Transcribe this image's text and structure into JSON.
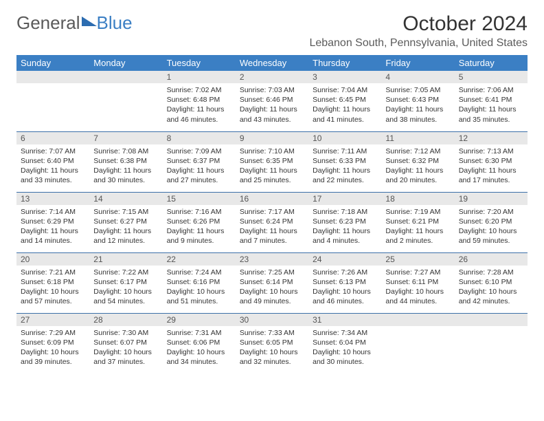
{
  "logo": {
    "text_general": "General",
    "text_blue": "Blue"
  },
  "title": "October 2024",
  "location": "Lebanon South, Pennsylvania, United States",
  "header_bg": "#3b7fc4",
  "daynum_bg": "#e8e8e8",
  "border_color": "#3b6fa8",
  "day_headers": [
    "Sunday",
    "Monday",
    "Tuesday",
    "Wednesday",
    "Thursday",
    "Friday",
    "Saturday"
  ],
  "weeks": [
    [
      {
        "n": "",
        "sr": "",
        "ss": "",
        "dl": ""
      },
      {
        "n": "",
        "sr": "",
        "ss": "",
        "dl": ""
      },
      {
        "n": "1",
        "sr": "Sunrise: 7:02 AM",
        "ss": "Sunset: 6:48 PM",
        "dl": "Daylight: 11 hours and 46 minutes."
      },
      {
        "n": "2",
        "sr": "Sunrise: 7:03 AM",
        "ss": "Sunset: 6:46 PM",
        "dl": "Daylight: 11 hours and 43 minutes."
      },
      {
        "n": "3",
        "sr": "Sunrise: 7:04 AM",
        "ss": "Sunset: 6:45 PM",
        "dl": "Daylight: 11 hours and 41 minutes."
      },
      {
        "n": "4",
        "sr": "Sunrise: 7:05 AM",
        "ss": "Sunset: 6:43 PM",
        "dl": "Daylight: 11 hours and 38 minutes."
      },
      {
        "n": "5",
        "sr": "Sunrise: 7:06 AM",
        "ss": "Sunset: 6:41 PM",
        "dl": "Daylight: 11 hours and 35 minutes."
      }
    ],
    [
      {
        "n": "6",
        "sr": "Sunrise: 7:07 AM",
        "ss": "Sunset: 6:40 PM",
        "dl": "Daylight: 11 hours and 33 minutes."
      },
      {
        "n": "7",
        "sr": "Sunrise: 7:08 AM",
        "ss": "Sunset: 6:38 PM",
        "dl": "Daylight: 11 hours and 30 minutes."
      },
      {
        "n": "8",
        "sr": "Sunrise: 7:09 AM",
        "ss": "Sunset: 6:37 PM",
        "dl": "Daylight: 11 hours and 27 minutes."
      },
      {
        "n": "9",
        "sr": "Sunrise: 7:10 AM",
        "ss": "Sunset: 6:35 PM",
        "dl": "Daylight: 11 hours and 25 minutes."
      },
      {
        "n": "10",
        "sr": "Sunrise: 7:11 AM",
        "ss": "Sunset: 6:33 PM",
        "dl": "Daylight: 11 hours and 22 minutes."
      },
      {
        "n": "11",
        "sr": "Sunrise: 7:12 AM",
        "ss": "Sunset: 6:32 PM",
        "dl": "Daylight: 11 hours and 20 minutes."
      },
      {
        "n": "12",
        "sr": "Sunrise: 7:13 AM",
        "ss": "Sunset: 6:30 PM",
        "dl": "Daylight: 11 hours and 17 minutes."
      }
    ],
    [
      {
        "n": "13",
        "sr": "Sunrise: 7:14 AM",
        "ss": "Sunset: 6:29 PM",
        "dl": "Daylight: 11 hours and 14 minutes."
      },
      {
        "n": "14",
        "sr": "Sunrise: 7:15 AM",
        "ss": "Sunset: 6:27 PM",
        "dl": "Daylight: 11 hours and 12 minutes."
      },
      {
        "n": "15",
        "sr": "Sunrise: 7:16 AM",
        "ss": "Sunset: 6:26 PM",
        "dl": "Daylight: 11 hours and 9 minutes."
      },
      {
        "n": "16",
        "sr": "Sunrise: 7:17 AM",
        "ss": "Sunset: 6:24 PM",
        "dl": "Daylight: 11 hours and 7 minutes."
      },
      {
        "n": "17",
        "sr": "Sunrise: 7:18 AM",
        "ss": "Sunset: 6:23 PM",
        "dl": "Daylight: 11 hours and 4 minutes."
      },
      {
        "n": "18",
        "sr": "Sunrise: 7:19 AM",
        "ss": "Sunset: 6:21 PM",
        "dl": "Daylight: 11 hours and 2 minutes."
      },
      {
        "n": "19",
        "sr": "Sunrise: 7:20 AM",
        "ss": "Sunset: 6:20 PM",
        "dl": "Daylight: 10 hours and 59 minutes."
      }
    ],
    [
      {
        "n": "20",
        "sr": "Sunrise: 7:21 AM",
        "ss": "Sunset: 6:18 PM",
        "dl": "Daylight: 10 hours and 57 minutes."
      },
      {
        "n": "21",
        "sr": "Sunrise: 7:22 AM",
        "ss": "Sunset: 6:17 PM",
        "dl": "Daylight: 10 hours and 54 minutes."
      },
      {
        "n": "22",
        "sr": "Sunrise: 7:24 AM",
        "ss": "Sunset: 6:16 PM",
        "dl": "Daylight: 10 hours and 51 minutes."
      },
      {
        "n": "23",
        "sr": "Sunrise: 7:25 AM",
        "ss": "Sunset: 6:14 PM",
        "dl": "Daylight: 10 hours and 49 minutes."
      },
      {
        "n": "24",
        "sr": "Sunrise: 7:26 AM",
        "ss": "Sunset: 6:13 PM",
        "dl": "Daylight: 10 hours and 46 minutes."
      },
      {
        "n": "25",
        "sr": "Sunrise: 7:27 AM",
        "ss": "Sunset: 6:11 PM",
        "dl": "Daylight: 10 hours and 44 minutes."
      },
      {
        "n": "26",
        "sr": "Sunrise: 7:28 AM",
        "ss": "Sunset: 6:10 PM",
        "dl": "Daylight: 10 hours and 42 minutes."
      }
    ],
    [
      {
        "n": "27",
        "sr": "Sunrise: 7:29 AM",
        "ss": "Sunset: 6:09 PM",
        "dl": "Daylight: 10 hours and 39 minutes."
      },
      {
        "n": "28",
        "sr": "Sunrise: 7:30 AM",
        "ss": "Sunset: 6:07 PM",
        "dl": "Daylight: 10 hours and 37 minutes."
      },
      {
        "n": "29",
        "sr": "Sunrise: 7:31 AM",
        "ss": "Sunset: 6:06 PM",
        "dl": "Daylight: 10 hours and 34 minutes."
      },
      {
        "n": "30",
        "sr": "Sunrise: 7:33 AM",
        "ss": "Sunset: 6:05 PM",
        "dl": "Daylight: 10 hours and 32 minutes."
      },
      {
        "n": "31",
        "sr": "Sunrise: 7:34 AM",
        "ss": "Sunset: 6:04 PM",
        "dl": "Daylight: 10 hours and 30 minutes."
      },
      {
        "n": "",
        "sr": "",
        "ss": "",
        "dl": ""
      },
      {
        "n": "",
        "sr": "",
        "ss": "",
        "dl": ""
      }
    ]
  ]
}
